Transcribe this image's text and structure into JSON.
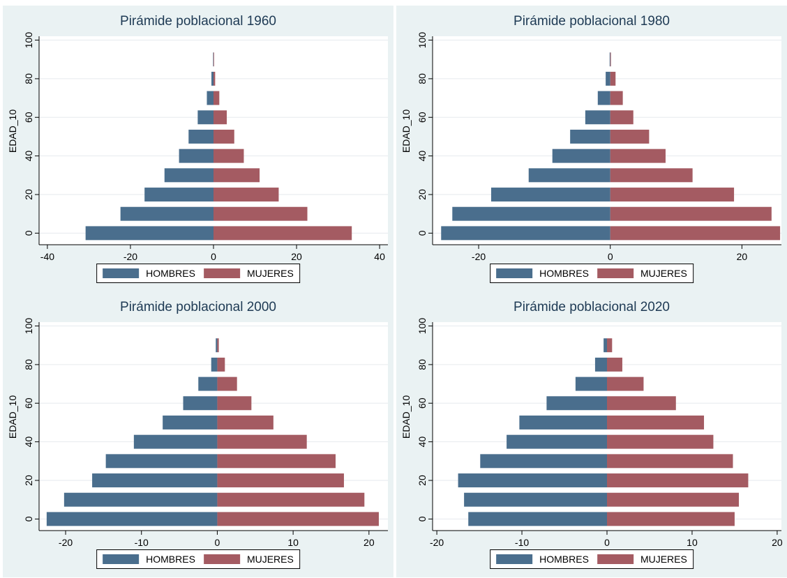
{
  "colors": {
    "hombres": "#4a6e8d",
    "mujeres": "#a45b62",
    "plot_bg": "#ffffff",
    "panel_bg": "#eaf2f3"
  },
  "chart_data": [
    {
      "type": "bar",
      "orientation": "horizontal",
      "title": "Pirámide poblacional 1960",
      "ylabel": "EDAD_10",
      "xlim": [
        -42,
        42
      ],
      "ylim": [
        -6,
        102
      ],
      "xticks": [
        -40,
        -20,
        0,
        20,
        40
      ],
      "yticks": [
        0,
        20,
        40,
        60,
        80,
        100
      ],
      "legend": [
        "HOMBRES",
        "MUJERES"
      ],
      "categories": [
        0,
        10,
        20,
        30,
        40,
        50,
        60,
        70,
        80,
        90
      ],
      "series": [
        {
          "name": "HOMBRES",
          "values": [
            -30.8,
            -22.4,
            -16.6,
            -11.8,
            -8.3,
            -6.0,
            -3.8,
            -1.6,
            -0.5,
            -0.1
          ]
        },
        {
          "name": "MUJERES",
          "values": [
            33.3,
            22.6,
            15.7,
            11.1,
            7.3,
            5.0,
            3.2,
            1.4,
            0.4,
            0.1
          ]
        }
      ]
    },
    {
      "type": "bar",
      "orientation": "horizontal",
      "title": "Pirámide poblacional 1980",
      "ylabel": "EDAD_10",
      "xlim": [
        -27,
        26
      ],
      "ylim": [
        -6,
        102
      ],
      "xticks": [
        -20,
        0,
        20
      ],
      "yticks": [
        0,
        20,
        40,
        60,
        80,
        100
      ],
      "legend": [
        "HOMBRES",
        "MUJERES"
      ],
      "categories": [
        0,
        10,
        20,
        30,
        40,
        50,
        60,
        70,
        80,
        90
      ],
      "series": [
        {
          "name": "HOMBRES",
          "values": [
            -25.7,
            -24.0,
            -18.1,
            -12.4,
            -8.8,
            -6.1,
            -3.8,
            -1.9,
            -0.7,
            -0.1
          ]
        },
        {
          "name": "MUJERES",
          "values": [
            25.8,
            24.5,
            18.8,
            12.5,
            8.4,
            5.9,
            3.5,
            1.9,
            0.8,
            0.1
          ]
        }
      ]
    },
    {
      "type": "bar",
      "orientation": "horizontal",
      "title": "Pirámide poblacional 2000",
      "ylabel": "EDAD_10",
      "xlim": [
        -23.5,
        22.5
      ],
      "ylim": [
        -6,
        102
      ],
      "xticks": [
        -20,
        -10,
        0,
        10,
        20
      ],
      "yticks": [
        0,
        20,
        40,
        60,
        80,
        100
      ],
      "legend": [
        "HOMBRES",
        "MUJERES"
      ],
      "categories": [
        0,
        10,
        20,
        30,
        40,
        50,
        60,
        70,
        80,
        90
      ],
      "series": [
        {
          "name": "HOMBRES",
          "values": [
            -22.5,
            -20.2,
            -16.5,
            -14.7,
            -11.0,
            -7.2,
            -4.5,
            -2.5,
            -0.8,
            -0.2
          ]
        },
        {
          "name": "MUJERES",
          "values": [
            21.3,
            19.4,
            16.7,
            15.6,
            11.8,
            7.4,
            4.5,
            2.6,
            1.0,
            0.2
          ]
        }
      ]
    },
    {
      "type": "bar",
      "orientation": "horizontal",
      "title": "Pirámide poblacional 2020",
      "ylabel": "EDAD_10",
      "xlim": [
        -20.5,
        20.5
      ],
      "ylim": [
        -6,
        102
      ],
      "xticks": [
        -20,
        -10,
        0,
        10,
        20
      ],
      "yticks": [
        0,
        20,
        40,
        60,
        80,
        100
      ],
      "legend": [
        "HOMBRES",
        "MUJERES"
      ],
      "categories": [
        0,
        10,
        20,
        30,
        40,
        50,
        60,
        70,
        80,
        90
      ],
      "series": [
        {
          "name": "HOMBRES",
          "values": [
            -16.3,
            -16.8,
            -17.5,
            -14.9,
            -11.8,
            -10.3,
            -7.1,
            -3.7,
            -1.4,
            -0.4
          ]
        },
        {
          "name": "MUJERES",
          "values": [
            15.0,
            15.5,
            16.6,
            14.8,
            12.5,
            11.4,
            8.1,
            4.3,
            1.8,
            0.6
          ]
        }
      ]
    }
  ]
}
